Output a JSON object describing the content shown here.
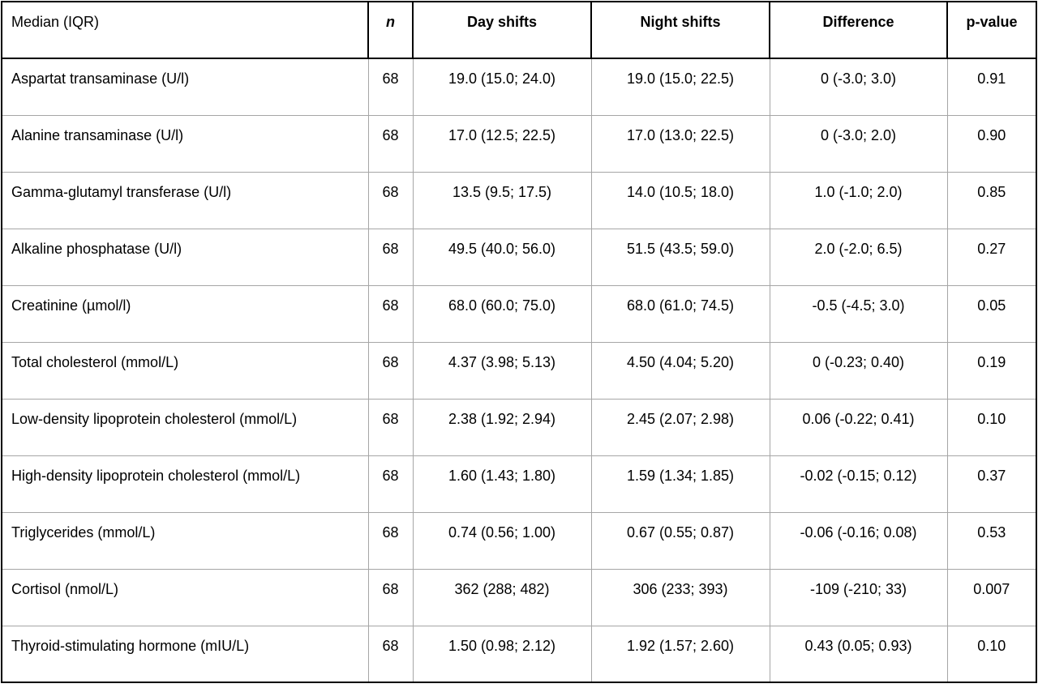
{
  "table": {
    "headers": {
      "label": "Median (IQR)",
      "n": "n",
      "day": "Day shifts",
      "night": "Night shifts",
      "difference": "Difference",
      "pvalue": "p-value"
    },
    "rows": [
      {
        "label": "Aspartat transaminase (U/l)",
        "n": "68",
        "day": "19.0 (15.0; 24.0)",
        "night": "19.0 (15.0; 22.5)",
        "difference": "0 (-3.0; 3.0)",
        "pvalue": "0.91"
      },
      {
        "label": "Alanine transaminase (U/l)",
        "n": "68",
        "day": "17.0 (12.5; 22.5)",
        "night": "17.0 (13.0; 22.5)",
        "difference": "0 (-3.0; 2.0)",
        "pvalue": "0.90"
      },
      {
        "label": "Gamma-glutamyl transferase (U/l)",
        "n": "68",
        "day": "13.5 (9.5; 17.5)",
        "night": "14.0 (10.5; 18.0)",
        "difference": "1.0 (-1.0; 2.0)",
        "pvalue": "0.85"
      },
      {
        "label": "Alkaline phosphatase (U/l)",
        "n": "68",
        "day": "49.5 (40.0; 56.0)",
        "night": "51.5 (43.5; 59.0)",
        "difference": "2.0 (-2.0; 6.5)",
        "pvalue": "0.27"
      },
      {
        "label": "Creatinine (µmol/l)",
        "n": "68",
        "day": "68.0 (60.0; 75.0)",
        "night": "68.0 (61.0; 74.5)",
        "difference": "-0.5 (-4.5; 3.0)",
        "pvalue": "0.05"
      },
      {
        "label": "Total cholesterol (mmol/L)",
        "n": "68",
        "day": "4.37 (3.98; 5.13)",
        "night": "4.50 (4.04; 5.20)",
        "difference": "0 (-0.23; 0.40)",
        "pvalue": "0.19"
      },
      {
        "label": "Low-density lipoprotein cholesterol (mmol/L)",
        "n": "68",
        "day": "2.38 (1.92; 2.94)",
        "night": "2.45 (2.07; 2.98)",
        "difference": "0.06 (-0.22; 0.41)",
        "pvalue": "0.10"
      },
      {
        "label": "High-density lipoprotein cholesterol (mmol/L)",
        "n": "68",
        "day": "1.60 (1.43; 1.80)",
        "night": "1.59 (1.34; 1.85)",
        "difference": "-0.02 (-0.15; 0.12)",
        "pvalue": "0.37"
      },
      {
        "label": "Triglycerides (mmol/L)",
        "n": "68",
        "day": "0.74 (0.56; 1.00)",
        "night": "0.67 (0.55; 0.87)",
        "difference": "-0.06 (-0.16; 0.08)",
        "pvalue": "0.53"
      },
      {
        "label": "Cortisol (nmol/L)",
        "n": "68",
        "day": "362 (288; 482)",
        "night": "306 (233; 393)",
        "difference": "-109 (-210; 33)",
        "pvalue": "0.007"
      },
      {
        "label": "Thyroid-stimulating hormone (mIU/L)",
        "n": "68",
        "day": "1.50 (0.98; 2.12)",
        "night": "1.92 (1.57; 2.60)",
        "difference": "0.43 (0.05; 0.93)",
        "pvalue": "0.10"
      }
    ]
  }
}
